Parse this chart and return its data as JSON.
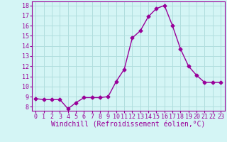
{
  "x": [
    0,
    1,
    2,
    3,
    4,
    5,
    6,
    7,
    8,
    9,
    10,
    11,
    12,
    13,
    14,
    15,
    16,
    17,
    18,
    19,
    20,
    21,
    22,
    23
  ],
  "y": [
    8.8,
    8.7,
    8.7,
    8.7,
    7.8,
    8.4,
    8.9,
    8.9,
    8.9,
    9.0,
    10.5,
    11.7,
    14.8,
    15.5,
    16.9,
    17.7,
    18.0,
    16.0,
    13.7,
    12.0,
    11.1,
    10.4,
    10.4,
    10.4
  ],
  "line_color": "#990099",
  "marker": "D",
  "marker_size": 2.5,
  "line_width": 1.0,
  "xlabel": "Windchill (Refroidissement éolien,°C)",
  "xlabel_fontsize": 7,
  "xtick_labels": [
    "0",
    "1",
    "2",
    "3",
    "4",
    "5",
    "6",
    "7",
    "8",
    "9",
    "10",
    "11",
    "12",
    "13",
    "14",
    "15",
    "16",
    "17",
    "18",
    "19",
    "20",
    "21",
    "22",
    "23"
  ],
  "ytick_min": 8,
  "ytick_max": 18,
  "ytick_step": 1,
  "ylim": [
    7.6,
    18.4
  ],
  "xlim": [
    -0.5,
    23.5
  ],
  "bg_color": "#d4f5f5",
  "grid_color": "#b0dede",
  "tick_color": "#990099",
  "tick_fontsize": 6,
  "tick_label_color": "#990099"
}
